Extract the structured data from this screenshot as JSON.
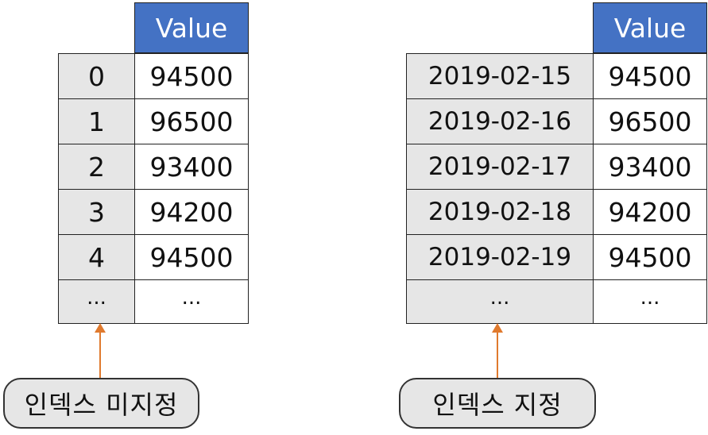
{
  "left_table": {
    "header": "Value",
    "index": [
      "0",
      "1",
      "2",
      "3",
      "4",
      "..."
    ],
    "values": [
      "94500",
      "96500",
      "93400",
      "94200",
      "94500",
      "..."
    ],
    "caption": "인덱스 미지정"
  },
  "right_table": {
    "header": "Value",
    "index": [
      "2019-02-15",
      "2019-02-16",
      "2019-02-17",
      "2019-02-18",
      "2019-02-19",
      "..."
    ],
    "values": [
      "94500",
      "96500",
      "93400",
      "94200",
      "94500",
      "..."
    ],
    "caption": "인덱스 지정"
  },
  "colors": {
    "header_fill": "#4472c4",
    "index_fill": "#e6e6e6",
    "arrow": "#e07a2e"
  }
}
